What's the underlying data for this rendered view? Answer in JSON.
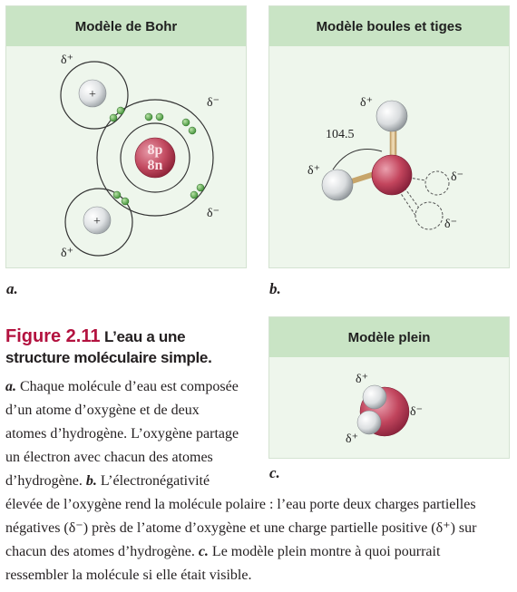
{
  "panels": {
    "bohr": {
      "title": "Modèle de Bohr",
      "letter": "a.",
      "nucleus_protons": "8p",
      "nucleus_neutrons": "8n",
      "plus": "+",
      "delta_plus": "δ⁺",
      "delta_minus": "δ⁻"
    },
    "ball_stick": {
      "title": "Modèle boules et tiges",
      "letter": "b.",
      "angle": "104.5",
      "delta_plus": "δ⁺",
      "delta_minus": "δ⁻"
    },
    "space_filling": {
      "title": "Modèle plein",
      "letter": "c.",
      "delta_plus": "δ⁺",
      "delta_minus": "δ⁻"
    }
  },
  "caption": {
    "figure_number": "Figure 2.11",
    "heading_line1": "L’eau a une",
    "heading_line2": "structure moléculaire simple",
    "heading_period": ".",
    "label_a": "a.",
    "line1": " Chaque molécule d’eau est composée",
    "line2": "d’un atome d’oxygène et de deux",
    "line3": "atomes d’hydrogène. L’oxygène partage",
    "line4": "un électron avec chacun des atomes",
    "line5a": "d’hydrogène. ",
    "label_b": "b.",
    "line5b": " L’électronégativité",
    "line6": "élevée de l’oxygène rend la molécule polaire : l’eau porte deux charges partielles",
    "line7": "négatives (δ⁻) près de l’atome d’oxygène et une charge partielle positive (δ⁺) sur",
    "line8a": "chacun des atomes d’hydrogène. ",
    "label_c": "c.",
    "line8b": " Le modèle plein montre à quoi pourrait",
    "line9": "ressembler la molécule si elle était visible."
  }
}
